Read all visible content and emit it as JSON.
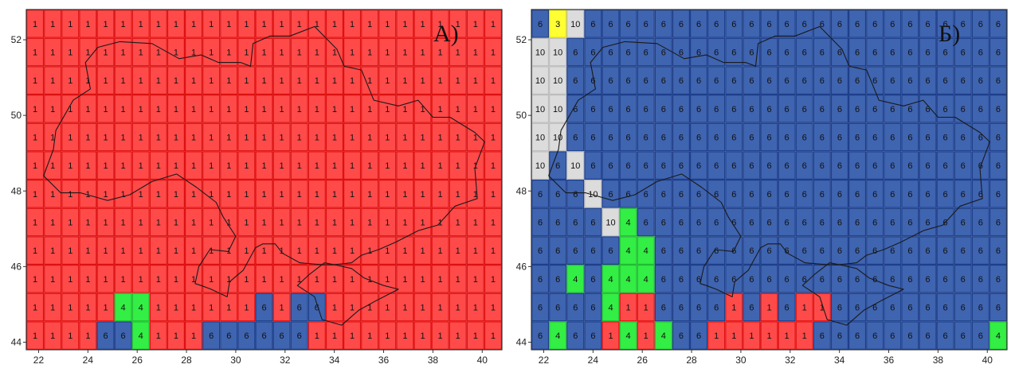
{
  "panels": [
    {
      "label": "А)",
      "x_ticks": [
        "22",
        "24",
        "26",
        "28",
        "30",
        "32",
        "34",
        "36",
        "38",
        "40"
      ],
      "y_ticks": [
        "52",
        "50",
        "48",
        "46",
        "44"
      ],
      "grid": [
        [
          "1",
          "1",
          "1",
          "1",
          "1",
          "1",
          "1",
          "1",
          "1",
          "1",
          "1",
          "1",
          "1",
          "1",
          "1",
          "1",
          "1",
          "1",
          "1",
          "1",
          "1",
          "1",
          "1",
          "1",
          "1",
          "1",
          "1"
        ],
        [
          "1",
          "1",
          "1",
          "1",
          "1",
          "1",
          "1",
          "1",
          "1",
          "1",
          "1",
          "1",
          "1",
          "1",
          "1",
          "1",
          "1",
          "1",
          "1",
          "1",
          "1",
          "1",
          "1",
          "1",
          "1",
          "1",
          "1"
        ],
        [
          "1",
          "1",
          "1",
          "1",
          "1",
          "1",
          "1",
          "1",
          "1",
          "1",
          "1",
          "1",
          "1",
          "1",
          "1",
          "1",
          "1",
          "1",
          "1",
          "1",
          "1",
          "1",
          "1",
          "1",
          "1",
          "1",
          "1"
        ],
        [
          "1",
          "1",
          "1",
          "1",
          "1",
          "1",
          "1",
          "1",
          "1",
          "1",
          "1",
          "1",
          "1",
          "1",
          "1",
          "1",
          "1",
          "1",
          "1",
          "1",
          "1",
          "1",
          "1",
          "1",
          "1",
          "1",
          "1"
        ],
        [
          "1",
          "1",
          "1",
          "1",
          "1",
          "1",
          "1",
          "1",
          "1",
          "1",
          "1",
          "1",
          "1",
          "1",
          "1",
          "1",
          "1",
          "1",
          "1",
          "1",
          "1",
          "1",
          "1",
          "1",
          "1",
          "1",
          "1"
        ],
        [
          "1",
          "1",
          "1",
          "1",
          "1",
          "1",
          "1",
          "1",
          "1",
          "1",
          "1",
          "1",
          "1",
          "1",
          "1",
          "1",
          "1",
          "1",
          "1",
          "1",
          "1",
          "1",
          "1",
          "1",
          "1",
          "1",
          "1"
        ],
        [
          "1",
          "1",
          "1",
          "1",
          "1",
          "1",
          "1",
          "1",
          "1",
          "1",
          "1",
          "1",
          "1",
          "1",
          "1",
          "1",
          "1",
          "1",
          "1",
          "1",
          "1",
          "1",
          "1",
          "1",
          "1",
          "1",
          "1"
        ],
        [
          "1",
          "1",
          "1",
          "1",
          "1",
          "1",
          "1",
          "1",
          "1",
          "1",
          "1",
          "1",
          "1",
          "1",
          "1",
          "1",
          "1",
          "1",
          "1",
          "1",
          "1",
          "1",
          "1",
          "1",
          "1",
          "1",
          "1"
        ],
        [
          "1",
          "1",
          "1",
          "1",
          "1",
          "1",
          "1",
          "1",
          "1",
          "1",
          "1",
          "1",
          "1",
          "1",
          "1",
          "1",
          "1",
          "1",
          "1",
          "1",
          "1",
          "1",
          "1",
          "1",
          "1",
          "1",
          "1"
        ],
        [
          "1",
          "1",
          "1",
          "1",
          "1",
          "1",
          "1",
          "1",
          "1",
          "1",
          "1",
          "1",
          "1",
          "1",
          "1",
          "1",
          "1",
          "1",
          "1",
          "1",
          "1",
          "1",
          "1",
          "1",
          "1",
          "1",
          "1"
        ],
        [
          "1",
          "1",
          "1",
          "1",
          "1",
          "4",
          "4",
          "1",
          "1",
          "1",
          "1",
          "1",
          "1",
          "6",
          "1",
          "6",
          "6",
          "1",
          "1",
          "1",
          "1",
          "1",
          "1",
          "1",
          "1",
          "1",
          "1"
        ],
        [
          "1",
          "1",
          "1",
          "1",
          "6",
          "6",
          "4",
          "1",
          "1",
          "1",
          "6",
          "6",
          "6",
          "6",
          "6",
          "6",
          "1",
          "1",
          "1",
          "1",
          "1",
          "1",
          "1",
          "1",
          "1",
          "1",
          "1"
        ]
      ]
    },
    {
      "label": "Б)",
      "x_ticks": [
        "22",
        "24",
        "26",
        "28",
        "30",
        "32",
        "34",
        "36",
        "38",
        "40"
      ],
      "y_ticks": [
        "52",
        "50",
        "48",
        "46",
        "44"
      ],
      "grid": [
        [
          "6",
          "3",
          "10",
          "6",
          "6",
          "6",
          "6",
          "6",
          "6",
          "6",
          "6",
          "6",
          "6",
          "6",
          "6",
          "6",
          "6",
          "6",
          "6",
          "6",
          "6",
          "6",
          "6",
          "6",
          "6",
          "6",
          "6"
        ],
        [
          "10",
          "10",
          "6",
          "6",
          "6",
          "6",
          "6",
          "6",
          "6",
          "6",
          "6",
          "6",
          "6",
          "6",
          "6",
          "6",
          "6",
          "6",
          "6",
          "6",
          "6",
          "6",
          "6",
          "6",
          "6",
          "6",
          "6"
        ],
        [
          "10",
          "10",
          "6",
          "6",
          "6",
          "6",
          "6",
          "6",
          "6",
          "6",
          "6",
          "6",
          "6",
          "6",
          "6",
          "6",
          "6",
          "6",
          "6",
          "6",
          "6",
          "6",
          "6",
          "6",
          "6",
          "6",
          "6"
        ],
        [
          "10",
          "10",
          "6",
          "6",
          "6",
          "6",
          "6",
          "6",
          "6",
          "6",
          "6",
          "6",
          "6",
          "6",
          "6",
          "6",
          "6",
          "6",
          "6",
          "6",
          "6",
          "6",
          "6",
          "6",
          "6",
          "6",
          "6"
        ],
        [
          "10",
          "10",
          "6",
          "6",
          "6",
          "6",
          "6",
          "6",
          "6",
          "6",
          "6",
          "6",
          "6",
          "6",
          "6",
          "6",
          "6",
          "6",
          "6",
          "6",
          "6",
          "6",
          "6",
          "6",
          "6",
          "6",
          "6"
        ],
        [
          "10",
          "6",
          "10",
          "6",
          "6",
          "6",
          "6",
          "6",
          "6",
          "6",
          "6",
          "6",
          "6",
          "6",
          "6",
          "6",
          "6",
          "6",
          "6",
          "6",
          "6",
          "6",
          "6",
          "6",
          "6",
          "6",
          "6"
        ],
        [
          "6",
          "6",
          "6",
          "10",
          "6",
          "6",
          "6",
          "6",
          "6",
          "6",
          "6",
          "6",
          "6",
          "6",
          "6",
          "6",
          "6",
          "6",
          "6",
          "6",
          "6",
          "6",
          "6",
          "6",
          "6",
          "6",
          "6"
        ],
        [
          "6",
          "6",
          "6",
          "6",
          "10",
          "4",
          "6",
          "6",
          "6",
          "6",
          "6",
          "6",
          "6",
          "6",
          "6",
          "6",
          "6",
          "6",
          "6",
          "6",
          "6",
          "6",
          "6",
          "6",
          "6",
          "6",
          "6"
        ],
        [
          "6",
          "6",
          "6",
          "6",
          "6",
          "4",
          "4",
          "6",
          "6",
          "6",
          "6",
          "6",
          "6",
          "6",
          "6",
          "6",
          "6",
          "6",
          "6",
          "6",
          "6",
          "6",
          "6",
          "6",
          "6",
          "6",
          "6"
        ],
        [
          "6",
          "6",
          "4",
          "6",
          "4",
          "4",
          "4",
          "6",
          "6",
          "6",
          "6",
          "6",
          "6",
          "6",
          "6",
          "6",
          "6",
          "6",
          "6",
          "6",
          "6",
          "6",
          "6",
          "6",
          "6",
          "6",
          "6"
        ],
        [
          "6",
          "6",
          "6",
          "6",
          "4",
          "1",
          "1",
          "6",
          "6",
          "6",
          "6",
          "1",
          "6",
          "1",
          "6",
          "1",
          "1",
          "6",
          "6",
          "6",
          "6",
          "6",
          "6",
          "6",
          "6",
          "6",
          "6"
        ],
        [
          "6",
          "4",
          "6",
          "6",
          "1",
          "4",
          "1",
          "4",
          "6",
          "6",
          "1",
          "1",
          "1",
          "1",
          "1",
          "1",
          "6",
          "6",
          "6",
          "6",
          "6",
          "6",
          "6",
          "6",
          "6",
          "6",
          "4"
        ]
      ]
    }
  ],
  "colors": {
    "1": "#ff4a4a",
    "3": "#ffff33",
    "4": "#33ee44",
    "6": "#3f64b0",
    "10": "#dcdcdc",
    "frame": "#333333",
    "outline": "#1a1a1a"
  },
  "lines": {
    "1": "#dd1111",
    "3": "#dddd00",
    "4": "#22bb33",
    "6": "#1f3f8a",
    "10": "#bdbdbd"
  }
}
